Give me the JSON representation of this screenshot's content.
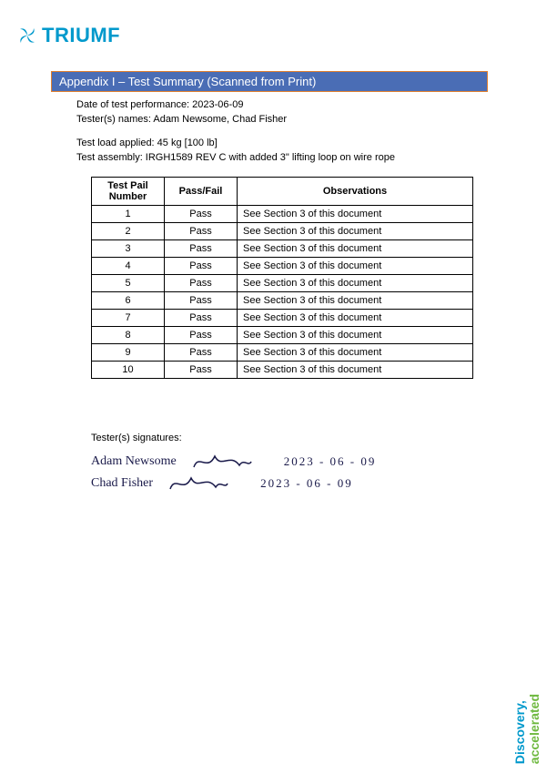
{
  "brand": {
    "name": "TRIUMF",
    "color": "#0099cc"
  },
  "banner": {
    "text": "Appendix I – Test Summary (Scanned from Print)",
    "bg_color": "#4a6db5",
    "border_color": "#e08030",
    "text_color": "#ffffff"
  },
  "meta": {
    "date_label": "Date of test performance: 2023-06-09",
    "testers_label": "Tester(s) names: Adam Newsome, Chad Fisher",
    "load_label": "Test load applied: 45 kg [100 lb]",
    "assembly_label": "Test assembly: IRGH1589 REV C with added 3\" lifting loop on wire rope"
  },
  "table": {
    "headers": {
      "col1": "Test Pail Number",
      "col2": "Pass/Fail",
      "col3": "Observations"
    },
    "rows": [
      {
        "num": "1",
        "pf": "Pass",
        "obs": "See Section 3 of this document"
      },
      {
        "num": "2",
        "pf": "Pass",
        "obs": "See Section 3 of this document"
      },
      {
        "num": "3",
        "pf": "Pass",
        "obs": "See Section 3 of this document"
      },
      {
        "num": "4",
        "pf": "Pass",
        "obs": "See Section 3 of this document"
      },
      {
        "num": "5",
        "pf": "Pass",
        "obs": "See Section 3 of this document"
      },
      {
        "num": "6",
        "pf": "Pass",
        "obs": "See Section 3 of this document"
      },
      {
        "num": "7",
        "pf": "Pass",
        "obs": "See Section 3 of this document"
      },
      {
        "num": "8",
        "pf": "Pass",
        "obs": "See Section 3 of this document"
      },
      {
        "num": "9",
        "pf": "Pass",
        "obs": "See Section 3 of this document"
      },
      {
        "num": "10",
        "pf": "Pass",
        "obs": "See Section 3 of this document"
      }
    ]
  },
  "signatures": {
    "label": "Tester(s) signatures:",
    "lines": [
      {
        "name": "Adam Newsome",
        "date": "2023 - 06 - 09"
      },
      {
        "name": "Chad Fisher",
        "date": "2023 - 06 - 09"
      }
    ]
  },
  "footer": {
    "word1": "Discovery,",
    "word2": "accelerated",
    "color1": "#0099cc",
    "color2": "#6fb940"
  }
}
